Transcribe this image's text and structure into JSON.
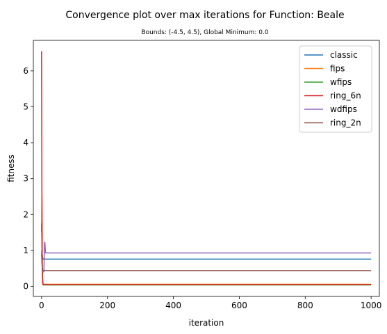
{
  "chart_data": {
    "type": "line",
    "title": "Convergence plot over max iterations for Function: Beale",
    "subtitle": "Bounds: (-4.5, 4.5), Global Minimum: 0.0",
    "xlabel": "iteration",
    "ylabel": "fitness",
    "xlim": [
      -25,
      1025
    ],
    "ylim": [
      -0.28,
      6.85
    ],
    "xticks": [
      0,
      200,
      400,
      600,
      800,
      1000
    ],
    "yticks": [
      0,
      1,
      2,
      3,
      4,
      5,
      6
    ],
    "grid": false,
    "legend_position": "top-right",
    "series": [
      {
        "name": "classic",
        "color": "#1f77b4",
        "x": [
          0,
          1,
          2,
          3,
          5,
          1000
        ],
        "y": [
          0.95,
          0.9,
          0.85,
          0.8,
          0.76,
          0.76
        ]
      },
      {
        "name": "fips",
        "color": "#ff7f0e",
        "x": [
          0,
          1,
          2,
          3,
          4,
          6,
          1000
        ],
        "y": [
          1.5,
          2.55,
          1.0,
          0.3,
          0.08,
          0.06,
          0.06
        ]
      },
      {
        "name": "wfips",
        "color": "#2ca02c",
        "x": [
          0,
          1,
          2,
          3,
          5,
          1000
        ],
        "y": [
          1.75,
          1.2,
          0.55,
          0.2,
          0.04,
          0.04
        ]
      },
      {
        "name": "ring_6n",
        "color": "#d62728",
        "x": [
          0,
          1,
          2,
          3,
          4,
          1000
        ],
        "y": [
          6.55,
          2.55,
          0.6,
          0.1,
          0.05,
          0.05
        ]
      },
      {
        "name": "wdfips",
        "color": "#9467bd",
        "x": [
          0,
          1,
          3,
          5,
          7,
          9,
          10,
          12,
          1000
        ],
        "y": [
          1.0,
          0.7,
          0.45,
          0.4,
          0.42,
          1.22,
          1.22,
          0.93,
          0.93
        ]
      },
      {
        "name": "ring_2n",
        "color": "#8c564b",
        "x": [
          0,
          1,
          2,
          4,
          1000
        ],
        "y": [
          0.9,
          0.7,
          0.5,
          0.44,
          0.44
        ]
      }
    ]
  }
}
